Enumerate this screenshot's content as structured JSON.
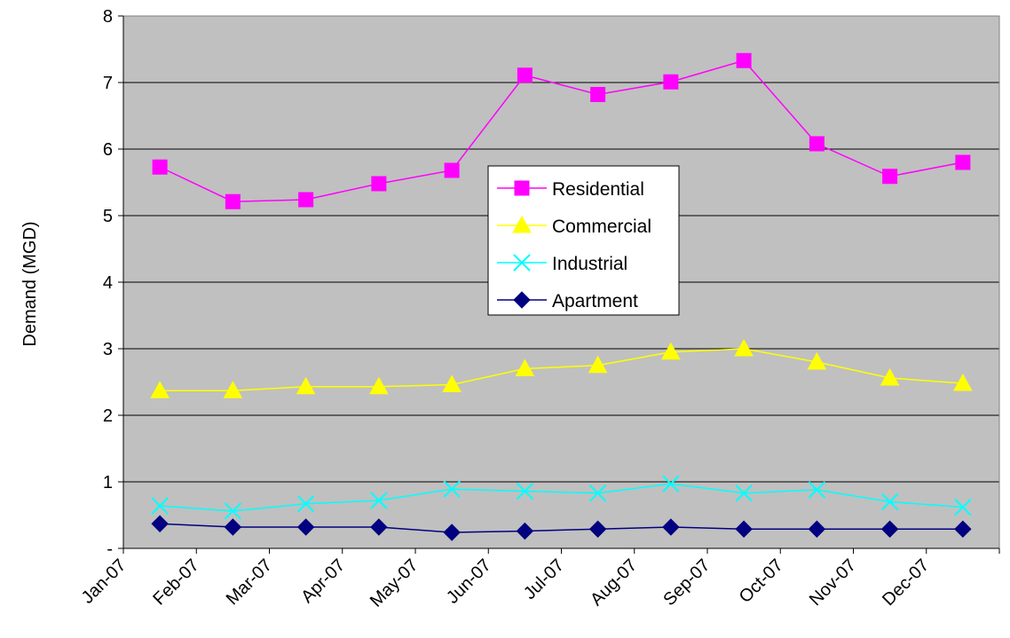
{
  "chart_data": {
    "type": "line",
    "title": "",
    "xlabel": "",
    "ylabel": "Demand (MGD)",
    "ylim": [
      0,
      8
    ],
    "y_ticks": [
      {
        "value": 0,
        "label": "-"
      },
      {
        "value": 1,
        "label": "1"
      },
      {
        "value": 2,
        "label": "2"
      },
      {
        "value": 3,
        "label": "3"
      },
      {
        "value": 4,
        "label": "4"
      },
      {
        "value": 5,
        "label": "5"
      },
      {
        "value": 6,
        "label": "6"
      },
      {
        "value": 7,
        "label": "7"
      },
      {
        "value": 8,
        "label": "8"
      }
    ],
    "grid": true,
    "plot_background": "#c0c0c0",
    "legend_placement": "center-right",
    "categories": [
      "Jan-07",
      "Feb-07",
      "Mar-07",
      "Apr-07",
      "May-07",
      "Jun-07",
      "Jul-07",
      "Aug-07",
      "Sep-07",
      "Oct-07",
      "Nov-07",
      "Dec-07"
    ],
    "series": [
      {
        "name": "Residential",
        "color": "#ff00ff",
        "marker": "square",
        "values": [
          5.73,
          5.21,
          5.24,
          5.48,
          5.68,
          7.11,
          6.82,
          7.01,
          7.33,
          6.08,
          5.59,
          5.8
        ]
      },
      {
        "name": "Commercial",
        "color": "#ffff00",
        "marker": "triangle",
        "values": [
          2.37,
          2.37,
          2.43,
          2.43,
          2.46,
          2.7,
          2.75,
          2.95,
          3.0,
          2.8,
          2.56,
          2.48
        ]
      },
      {
        "name": "Industrial",
        "color": "#00ffff",
        "marker": "x",
        "values": [
          0.64,
          0.56,
          0.67,
          0.72,
          0.89,
          0.86,
          0.83,
          0.97,
          0.83,
          0.88,
          0.7,
          0.62
        ]
      },
      {
        "name": "Apartment",
        "color": "#000080",
        "marker": "diamond",
        "values": [
          0.37,
          0.32,
          0.32,
          0.32,
          0.24,
          0.26,
          0.29,
          0.32,
          0.29,
          0.29,
          0.29,
          0.29
        ]
      }
    ]
  }
}
